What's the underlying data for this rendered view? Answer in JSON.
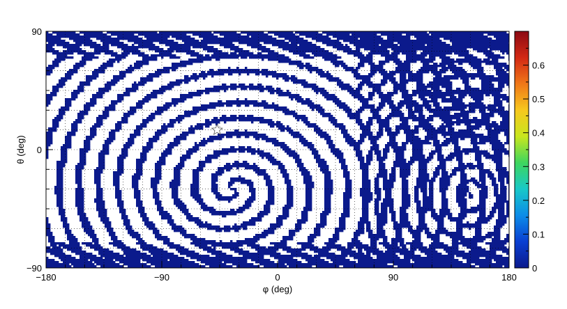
{
  "chart_data": {
    "type": "heatmap",
    "title": "",
    "xlabel": "φ (deg)",
    "ylabel": "θ (deg)",
    "xlim": [
      -180,
      180
    ],
    "ylim": [
      -90,
      90
    ],
    "x_ticks": [
      -180,
      -90,
      0,
      90,
      180
    ],
    "y_ticks": [
      -90,
      0,
      90
    ],
    "x_minor_step": 15,
    "y_minor_step": 15,
    "grid": true,
    "colorbar": {
      "range": [
        0,
        0.7
      ],
      "ticks": [
        "0",
        "0.1",
        "0.2",
        "0.3",
        "0.4",
        "0.5",
        "0.6"
      ],
      "palette": [
        "#0b1a8c",
        "#0a3fd2",
        "#0c8ce8",
        "#18c8c8",
        "#3ed65e",
        "#c8e61e",
        "#f7c81e",
        "#f07818",
        "#d22814",
        "#8c0a14"
      ]
    },
    "fill_color": "#0b1a8c",
    "marker": {
      "symbol": "star",
      "phi": -47,
      "theta": 15
    },
    "ring_centers": [
      {
        "phi": -35,
        "theta": -30
      },
      {
        "phi": 150,
        "theta": -35
      },
      {
        "phi": 135,
        "theta": 50
      }
    ]
  }
}
